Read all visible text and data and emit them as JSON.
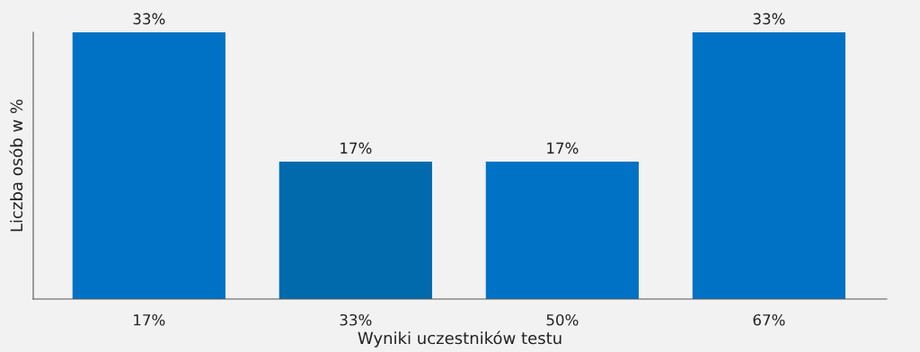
{
  "chart_data": {
    "type": "bar",
    "xlabel": "Wyniki uczestników testu",
    "ylabel": "Liczba osób w %",
    "categories": [
      "17%",
      "33%",
      "50%",
      "67%"
    ],
    "values": [
      33,
      17,
      17,
      33
    ],
    "colors": [
      "#0072c6",
      "#006aad",
      "#0072c6",
      "#0072c6"
    ],
    "value_labels": [
      "33%",
      "17%",
      "17%",
      "33%"
    ],
    "grid": false,
    "legend": false
  }
}
